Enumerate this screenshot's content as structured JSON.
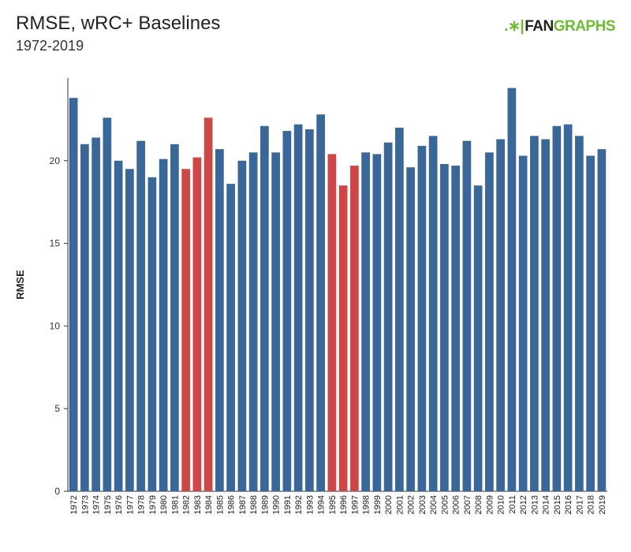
{
  "header": {
    "title": "RMSE, wRC+ Baselines",
    "subtitle": "1972-2019"
  },
  "logo": {
    "mark_text": ".∗|",
    "part1": "FAN",
    "part2": "GRAPHS"
  },
  "colors": {
    "default_bar": "#3a679a",
    "highlight_bar": "#d04646",
    "axis": "#333333",
    "logo_green": "#6abf2e"
  },
  "chart_data": {
    "type": "bar",
    "title": "RMSE, wRC+ Baselines",
    "subtitle": "1972-2019",
    "xlabel": "",
    "ylabel": "RMSE",
    "ylim": [
      0,
      25
    ],
    "yticks": [
      0,
      5,
      10,
      15,
      20
    ],
    "grid": false,
    "categories": [
      "1972",
      "1973",
      "1974",
      "1975",
      "1976",
      "1977",
      "1978",
      "1979",
      "1980",
      "1981",
      "1982",
      "1983",
      "1984",
      "1985",
      "1986",
      "1987",
      "1988",
      "1989",
      "1990",
      "1991",
      "1992",
      "1993",
      "1994",
      "1995",
      "1996",
      "1997",
      "1998",
      "1999",
      "2000",
      "2001",
      "2002",
      "2003",
      "2004",
      "2005",
      "2006",
      "2007",
      "2008",
      "2009",
      "2010",
      "2011",
      "2012",
      "2013",
      "2014",
      "2015",
      "2016",
      "2017",
      "2018",
      "2019"
    ],
    "values": [
      23.8,
      21.0,
      21.4,
      22.6,
      20.0,
      19.5,
      21.2,
      19.0,
      20.1,
      21.0,
      19.5,
      20.2,
      22.6,
      20.7,
      18.6,
      20.0,
      20.5,
      22.1,
      20.5,
      21.8,
      22.2,
      21.9,
      22.8,
      20.4,
      18.5,
      19.7,
      20.5,
      20.4,
      21.1,
      22.0,
      19.6,
      20.9,
      21.5,
      19.8,
      19.7,
      21.2,
      18.5,
      20.5,
      21.3,
      24.4,
      20.3,
      21.5,
      21.3,
      22.1,
      22.2,
      21.5,
      20.3,
      20.7
    ],
    "highlighted": [
      "1982",
      "1983",
      "1984",
      "1995",
      "1996",
      "1997"
    ]
  }
}
